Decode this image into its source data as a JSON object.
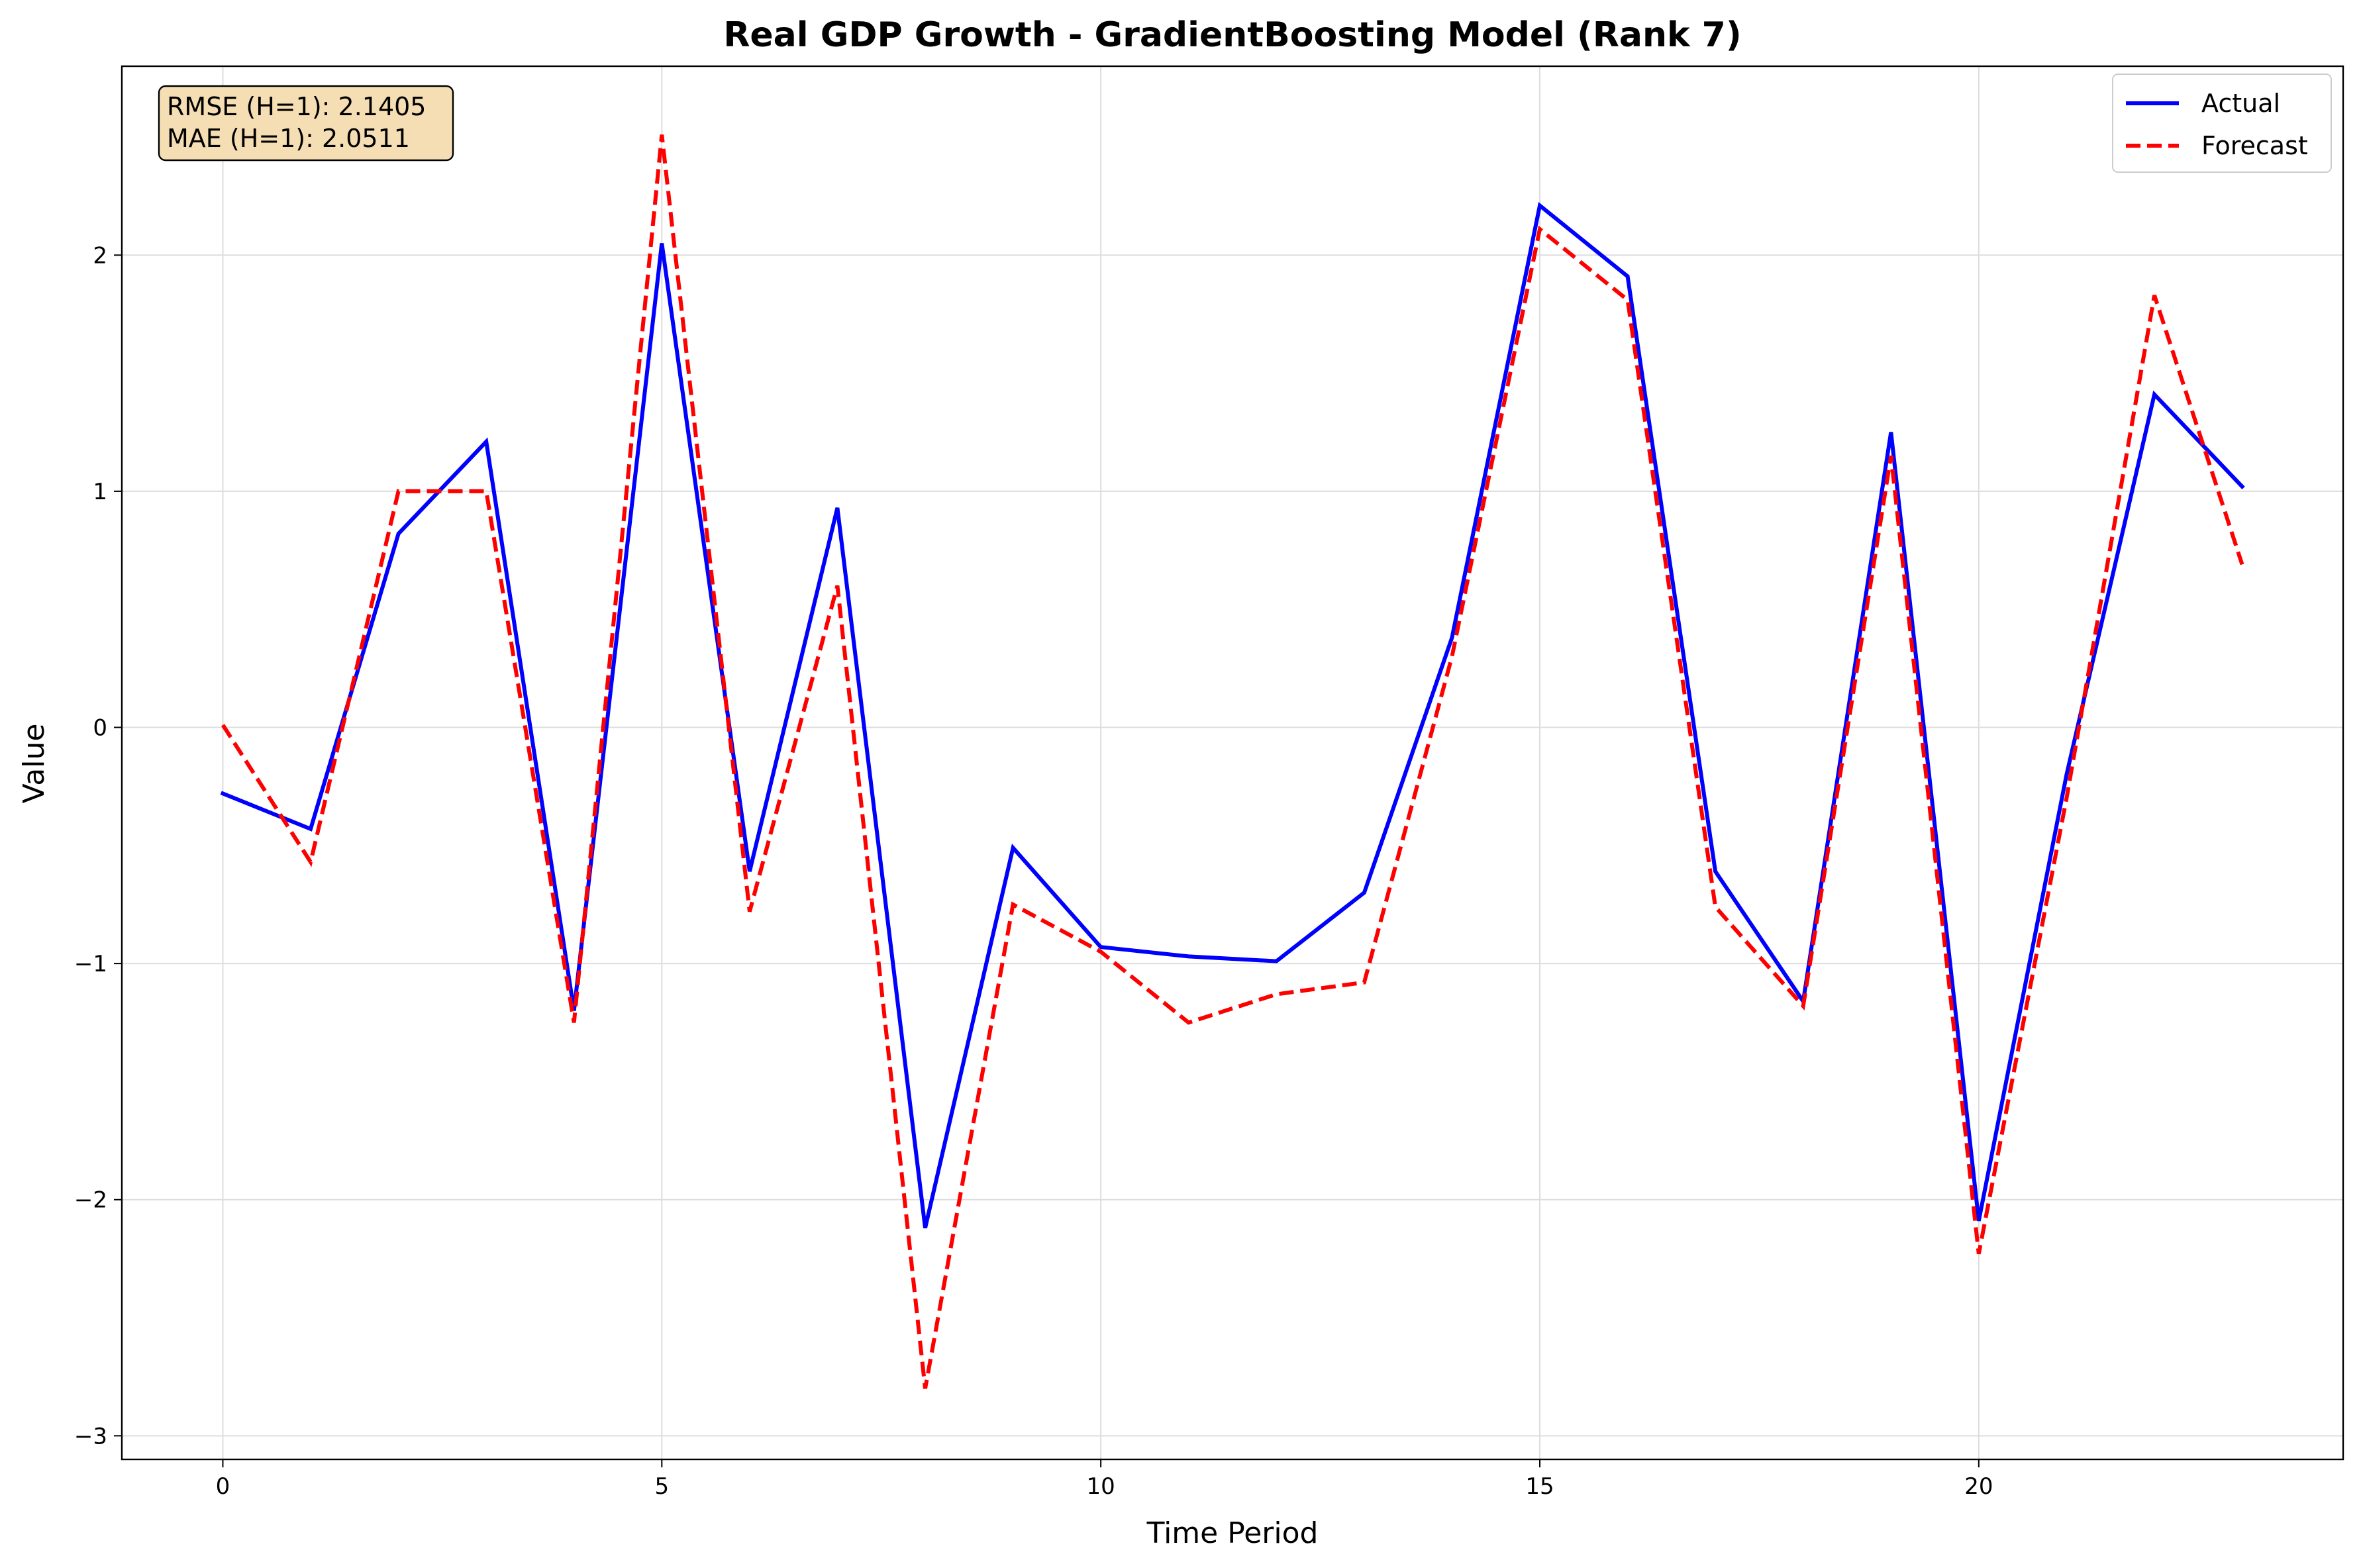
{
  "chart_data": {
    "type": "line",
    "title": "Real GDP Growth - GradientBoosting Model (Rank 7)",
    "xlabel": "Time Period",
    "ylabel": "Value",
    "xlim": [
      -1.15,
      24.15
    ],
    "ylim": [
      -3.1,
      2.8
    ],
    "xticks": [
      0,
      5,
      10,
      15,
      20
    ],
    "yticks": [
      -3,
      -2,
      -1,
      0,
      1,
      2
    ],
    "ytick_labels": [
      "−3",
      "−2",
      "−1",
      "0",
      "1",
      "2"
    ],
    "grid": true,
    "legend_position": "top-right",
    "x": [
      0,
      1,
      2,
      3,
      4,
      5,
      6,
      7,
      8,
      9,
      10,
      11,
      12,
      13,
      14,
      15,
      16,
      17,
      18,
      19,
      20,
      21,
      22,
      23
    ],
    "series": [
      {
        "name": "Actual",
        "color": "#0000ff",
        "style": "solid",
        "values": [
          -0.28,
          -0.43,
          0.82,
          1.21,
          -1.2,
          2.05,
          -0.61,
          0.93,
          -2.12,
          -0.51,
          -0.93,
          -0.97,
          -0.99,
          -0.7,
          0.38,
          2.21,
          1.91,
          -0.61,
          -1.16,
          1.25,
          -2.09,
          -0.2,
          1.41,
          1.02
        ]
      },
      {
        "name": "Forecast",
        "color": "#ff0000",
        "style": "dashed",
        "values": [
          0.01,
          -0.57,
          1.0,
          1.0,
          -1.25,
          2.51,
          -0.78,
          0.6,
          -2.8,
          -0.75,
          -0.95,
          -1.25,
          -1.13,
          -1.08,
          0.3,
          2.11,
          1.81,
          -0.76,
          -1.18,
          1.15,
          -2.23,
          -0.3,
          1.83,
          0.69
        ]
      }
    ],
    "annotation": {
      "lines": [
        "RMSE (H=1): 2.1405",
        "MAE (H=1): 2.0511"
      ],
      "background": "#f5deb3"
    }
  }
}
